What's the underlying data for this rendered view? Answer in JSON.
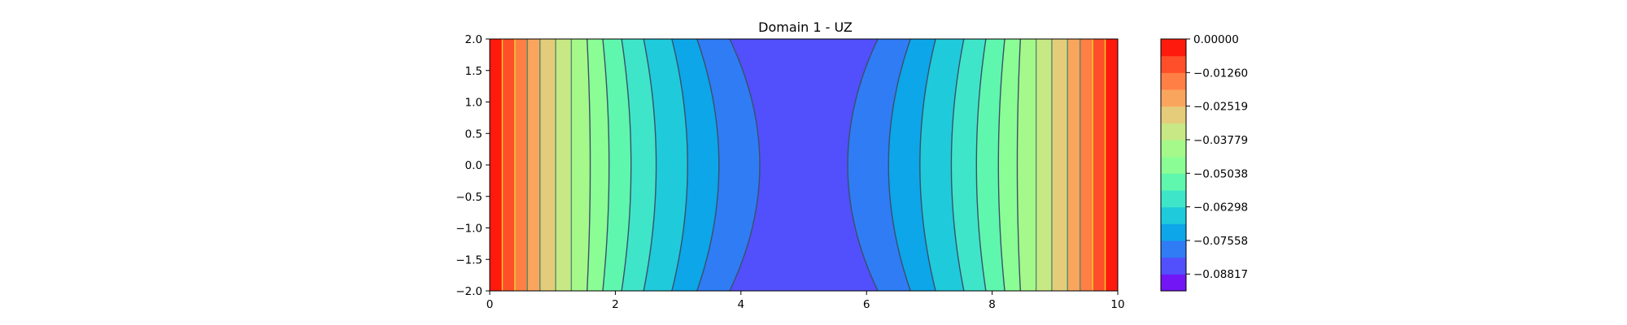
{
  "chart_data": {
    "type": "contour",
    "title": "Domain 1 - UZ",
    "xlabel": "",
    "ylabel": "",
    "xlim": [
      0,
      10
    ],
    "ylim": [
      -2,
      2
    ],
    "x_ticks": [
      0,
      2,
      4,
      6,
      8,
      10
    ],
    "x_tick_labels": [
      "0",
      "2",
      "4",
      "6",
      "8",
      "10"
    ],
    "y_ticks": [
      2.0,
      1.5,
      1.0,
      0.5,
      0.0,
      -0.5,
      -1.0,
      -1.5,
      -2.0
    ],
    "y_tick_labels": [
      "2.0",
      "1.5",
      "1.0",
      "0.5",
      "0.0",
      "−0.5",
      "−1.0",
      "−1.5",
      "−2.0"
    ],
    "colormap": "rainbow",
    "colorbar": {
      "vmin": -0.0945,
      "vmax": 0.0,
      "levels": 15,
      "colors": [
        "#7216f5",
        "#524ffc",
        "#2f7cf5",
        "#0ca6e9",
        "#1fcadb",
        "#3fe5c8",
        "#5ff6ad",
        "#8bfd95",
        "#a5f88a",
        "#c7e884",
        "#e5cc7a",
        "#faa55e",
        "#ff7f44",
        "#ff4f2a",
        "#ff1a0e"
      ],
      "tick_values": [
        0.0,
        -0.0126,
        -0.02519,
        -0.03779,
        -0.05038,
        -0.06298,
        -0.07558,
        -0.08817
      ],
      "tick_labels": [
        "0.00000",
        "−0.01260",
        "−0.02519",
        "−0.03779",
        "−0.05038",
        "−0.06298",
        "−0.07558",
        "−0.08817"
      ]
    },
    "contour_level_x_at_edge": [
      0.2,
      0.4,
      0.6,
      0.8,
      1.05,
      1.3,
      1.55,
      1.8,
      2.1,
      2.45,
      2.9,
      3.3,
      3.82
    ],
    "contour_level_x_at_center": [
      0.2,
      0.4,
      0.6,
      0.8,
      1.05,
      1.3,
      1.6,
      1.9,
      2.25,
      2.65,
      3.15,
      3.65,
      4.3
    ],
    "grid": false
  }
}
